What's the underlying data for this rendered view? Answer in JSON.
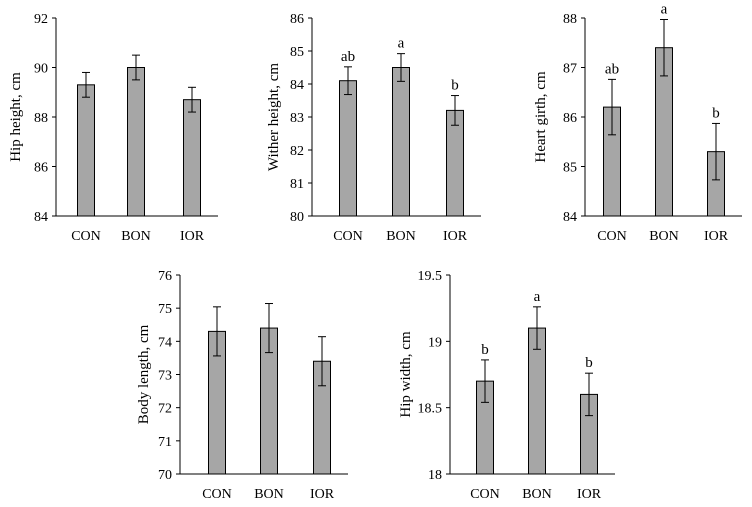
{
  "colors": {
    "bar_fill": "#a6a6a6",
    "bar_stroke": "#000000",
    "axis": "#000000"
  },
  "chart_data": [
    {
      "type": "bar",
      "title": "",
      "xlabel": "",
      "ylabel": "Hip height, cm",
      "categories": [
        "CON",
        "BON",
        "IOR"
      ],
      "values": [
        89.3,
        90.0,
        88.7
      ],
      "errors": [
        0.5,
        0.5,
        0.5
      ],
      "significance": [
        "",
        "",
        ""
      ],
      "ylim": [
        84,
        92
      ],
      "yticks": [
        84,
        86,
        88,
        90,
        92
      ],
      "ytick_labels": [
        "84",
        "86",
        "88",
        "90",
        "92"
      ]
    },
    {
      "type": "bar",
      "title": "",
      "xlabel": "",
      "ylabel": "Wither height, cm",
      "categories": [
        "CON",
        "BON",
        "IOR"
      ],
      "values": [
        84.1,
        84.5,
        83.2
      ],
      "errors": [
        0.42,
        0.42,
        0.45
      ],
      "significance": [
        "ab",
        "a",
        "b"
      ],
      "ylim": [
        80,
        86
      ],
      "yticks": [
        80,
        81,
        82,
        83,
        84,
        85,
        86
      ],
      "ytick_labels": [
        "80",
        "81",
        "82",
        "83",
        "84",
        "85",
        "86"
      ]
    },
    {
      "type": "bar",
      "title": "",
      "xlabel": "",
      "ylabel": "Heart girth, cm",
      "categories": [
        "CON",
        "BON",
        "IOR"
      ],
      "values": [
        86.2,
        87.4,
        85.3
      ],
      "errors": [
        0.56,
        0.57,
        0.57
      ],
      "significance": [
        "ab",
        "a",
        "b"
      ],
      "ylim": [
        84,
        88
      ],
      "yticks": [
        84,
        85,
        86,
        87,
        88
      ],
      "ytick_labels": [
        "84",
        "85",
        "86",
        "87",
        "88"
      ]
    },
    {
      "type": "bar",
      "title": "",
      "xlabel": "",
      "ylabel": "Body length, cm",
      "categories": [
        "CON",
        "BON",
        "IOR"
      ],
      "values": [
        74.3,
        74.4,
        73.4
      ],
      "errors": [
        0.74,
        0.74,
        0.74
      ],
      "significance": [
        "",
        "",
        ""
      ],
      "ylim": [
        70,
        76
      ],
      "yticks": [
        70,
        71,
        72,
        73,
        74,
        75,
        76
      ],
      "ytick_labels": [
        "70",
        "71",
        "72",
        "73",
        "74",
        "75",
        "76"
      ]
    },
    {
      "type": "bar",
      "title": "",
      "xlabel": "",
      "ylabel": "Hip width, cm",
      "categories": [
        "CON",
        "BON",
        "IOR"
      ],
      "values": [
        18.7,
        19.1,
        18.6
      ],
      "errors": [
        0.16,
        0.16,
        0.16
      ],
      "significance": [
        "b",
        "a",
        "b"
      ],
      "ylim": [
        18,
        19.5
      ],
      "yticks": [
        18,
        18.5,
        19,
        19.5
      ],
      "ytick_labels": [
        "18",
        "18.5",
        "19",
        "19.5"
      ]
    }
  ]
}
